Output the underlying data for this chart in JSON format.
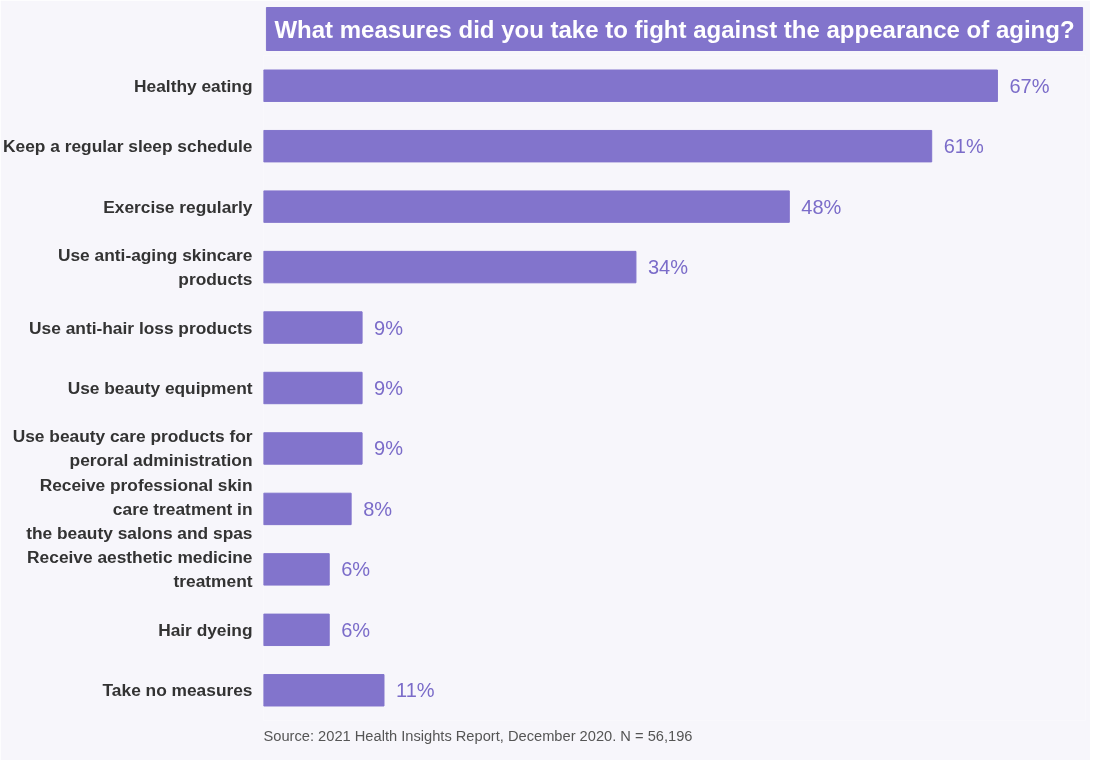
{
  "chart_data": {
    "type": "bar",
    "orientation": "horizontal",
    "title": "What measures did you take to fight against the appearance of aging?",
    "categories": [
      "Healthy eating",
      "Keep a regular sleep schedule",
      "Exercise regularly",
      "Use anti-aging skincare\nproducts",
      "Use anti-hair loss products",
      "Use beauty equipment",
      "Use beauty care products for\nperoral administration",
      "Receive professional skin\ncare treatment in\nthe beauty salons and spas",
      "Receive aesthetic medicine\ntreatment",
      "Hair dyeing",
      "Take no measures"
    ],
    "values": [
      67,
      61,
      48,
      34,
      9,
      9,
      9,
      8,
      6,
      6,
      11
    ],
    "value_labels": [
      "67%",
      "61%",
      "48%",
      "34%",
      "9%",
      "9%",
      "9%",
      "8%",
      "6%",
      "6%",
      "11%"
    ],
    "color": "#8274cc",
    "annotations": [
      "Source: 2021 Health Insights Report, December 2020. N = 56,196"
    ]
  }
}
